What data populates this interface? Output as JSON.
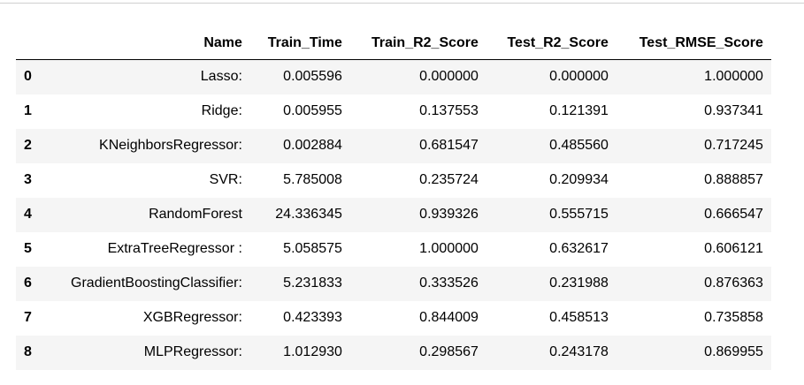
{
  "table": {
    "columns": {
      "index": "",
      "name": "Name",
      "train_time": "Train_Time",
      "train_r2": "Train_R2_Score",
      "test_r2": "Test_R2_Score",
      "test_rmse": "Test_RMSE_Score"
    },
    "rows": [
      {
        "idx": "0",
        "name": "Lasso:",
        "train_time": "0.005596",
        "train_r2": "0.000000",
        "test_r2": "0.000000",
        "test_rmse": "1.000000"
      },
      {
        "idx": "1",
        "name": "Ridge:",
        "train_time": "0.005955",
        "train_r2": "0.137553",
        "test_r2": "0.121391",
        "test_rmse": "0.937341"
      },
      {
        "idx": "2",
        "name": "KNeighborsRegressor:",
        "train_time": "0.002884",
        "train_r2": "0.681547",
        "test_r2": "0.485560",
        "test_rmse": "0.717245"
      },
      {
        "idx": "3",
        "name": "SVR:",
        "train_time": "5.785008",
        "train_r2": "0.235724",
        "test_r2": "0.209934",
        "test_rmse": "0.888857"
      },
      {
        "idx": "4",
        "name": "RandomForest",
        "train_time": "24.336345",
        "train_r2": "0.939326",
        "test_r2": "0.555715",
        "test_rmse": "0.666547"
      },
      {
        "idx": "5",
        "name": "ExtraTreeRegressor :",
        "train_time": "5.058575",
        "train_r2": "1.000000",
        "test_r2": "0.632617",
        "test_rmse": "0.606121"
      },
      {
        "idx": "6",
        "name": "GradientBoostingClassifier:",
        "train_time": "5.231833",
        "train_r2": "0.333526",
        "test_r2": "0.231988",
        "test_rmse": "0.876363"
      },
      {
        "idx": "7",
        "name": "XGBRegressor:",
        "train_time": "0.423393",
        "train_r2": "0.844009",
        "test_r2": "0.458513",
        "test_rmse": "0.735858"
      },
      {
        "idx": "8",
        "name": "MLPRegressor:",
        "train_time": "1.012930",
        "train_r2": "0.298567",
        "test_r2": "0.243178",
        "test_rmse": "0.869955"
      }
    ]
  }
}
